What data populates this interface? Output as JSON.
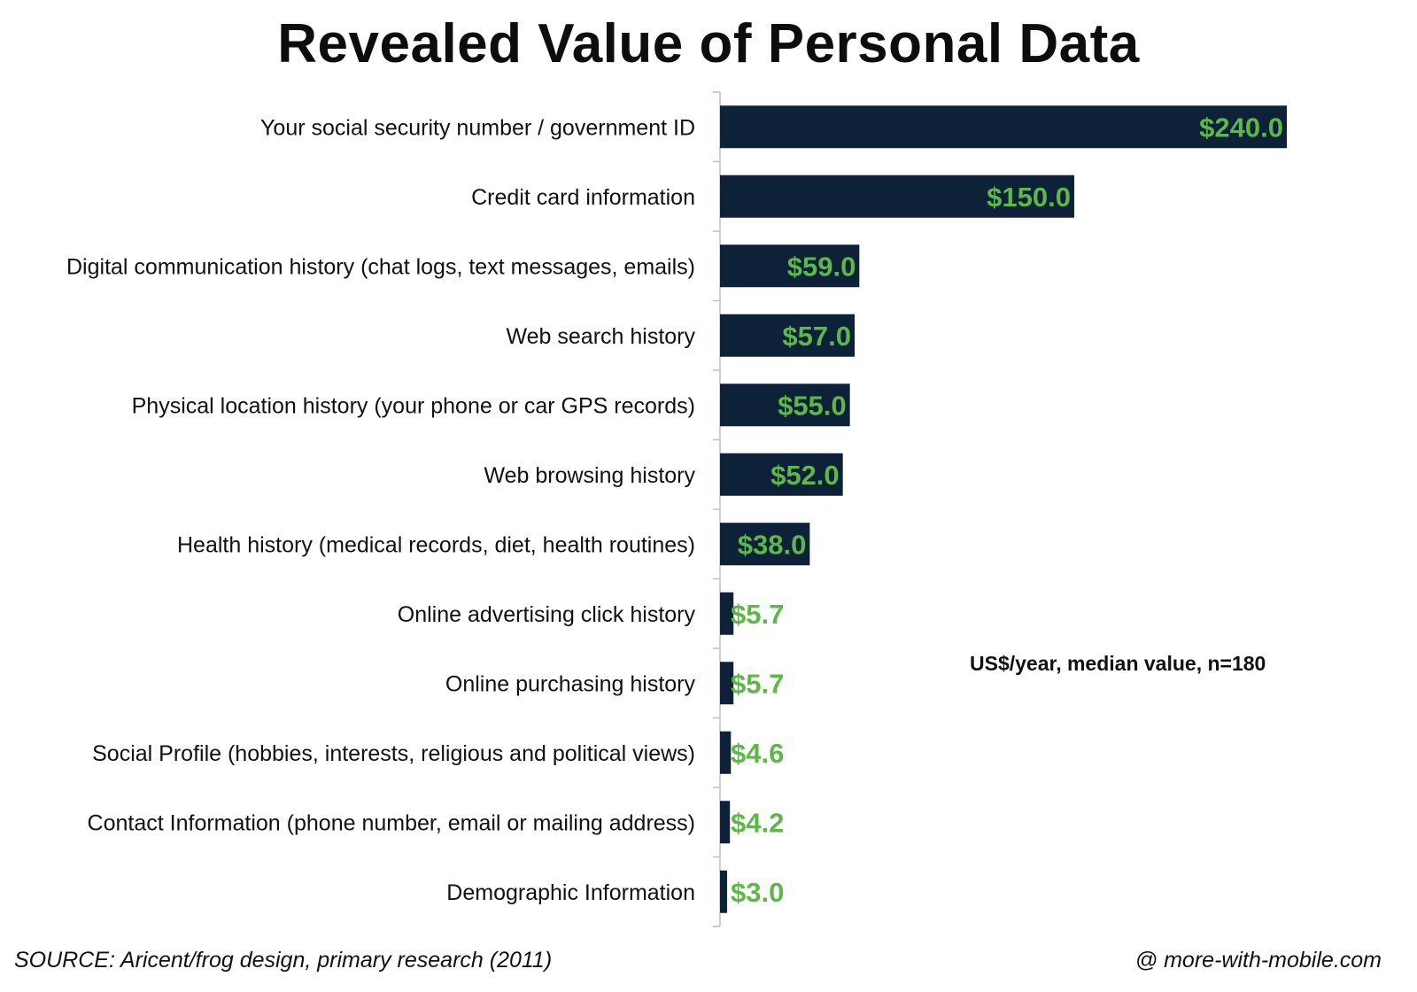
{
  "chart_data": {
    "type": "bar",
    "orientation": "horizontal",
    "title": "Revealed Value of Personal Data",
    "categories": [
      "Your social security number / government ID",
      "Credit card information",
      "Digital communication history (chat logs, text messages, emails)",
      "Web search history",
      "Physical location history (your phone or car GPS records)",
      "Web browsing history",
      "Health history (medical records, diet, health routines)",
      "Online advertising click history",
      "Online purchasing history",
      "Social Profile (hobbies, interests, religious and political views)",
      "Contact Information (phone number, email or mailing address)",
      "Demographic Information"
    ],
    "values": [
      240.0,
      150.0,
      59.0,
      57.0,
      55.0,
      52.0,
      38.0,
      5.7,
      5.7,
      4.6,
      4.2,
      3.0
    ],
    "value_labels": [
      "$240.0",
      "$150.0",
      "$59.0",
      "$57.0",
      "$55.0",
      "$52.0",
      "$38.0",
      "$5.7",
      "$5.7",
      "$4.6",
      "$4.2",
      "$3.0"
    ],
    "xlim": [
      0,
      240
    ],
    "grid": false,
    "bar_color": "#0d2138",
    "label_color": "#5db848",
    "annotation": "US$/year, median value, n=180"
  },
  "footer": {
    "source": "SOURCE: Aricent/frog design, primary research (2011)",
    "credit": "@ more-with-mobile.com"
  }
}
